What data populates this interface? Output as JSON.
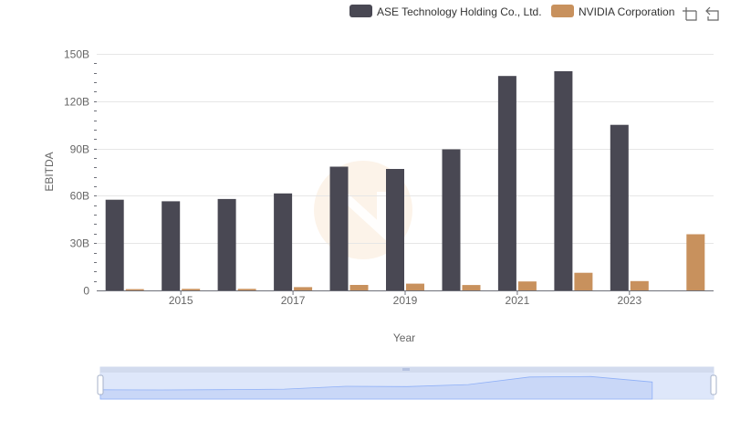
{
  "chart_data": {
    "type": "bar",
    "xlabel": "Year",
    "ylabel": "EBITDA",
    "ylim": [
      0,
      150000000000
    ],
    "y_ticks": [
      "0",
      "30B",
      "60B",
      "90B",
      "120B",
      "150B"
    ],
    "x_tick_labels": [
      "2015",
      "2017",
      "2019",
      "2021",
      "2023"
    ],
    "categories": [
      "2014",
      "2015",
      "2016",
      "2017",
      "2018",
      "2019",
      "2020",
      "2021",
      "2022",
      "2023",
      "2024"
    ],
    "series": [
      {
        "name": "ASE Technology Holding Co., Ltd.",
        "color": "#494853",
        "values": [
          57500000000,
          56500000000,
          58000000000,
          61500000000,
          78500000000,
          77000000000,
          89500000000,
          136000000000,
          139000000000,
          105000000000,
          null
        ]
      },
      {
        "name": "NVIDIA Corporation",
        "color": "#c8915d",
        "values": [
          800000000,
          1000000000,
          1000000000,
          2100000000,
          3500000000,
          4300000000,
          3400000000,
          5700000000,
          11200000000,
          5900000000,
          35600000000
        ]
      }
    ],
    "legend_position": "top-right",
    "grid": true,
    "data_zoom": true
  }
}
